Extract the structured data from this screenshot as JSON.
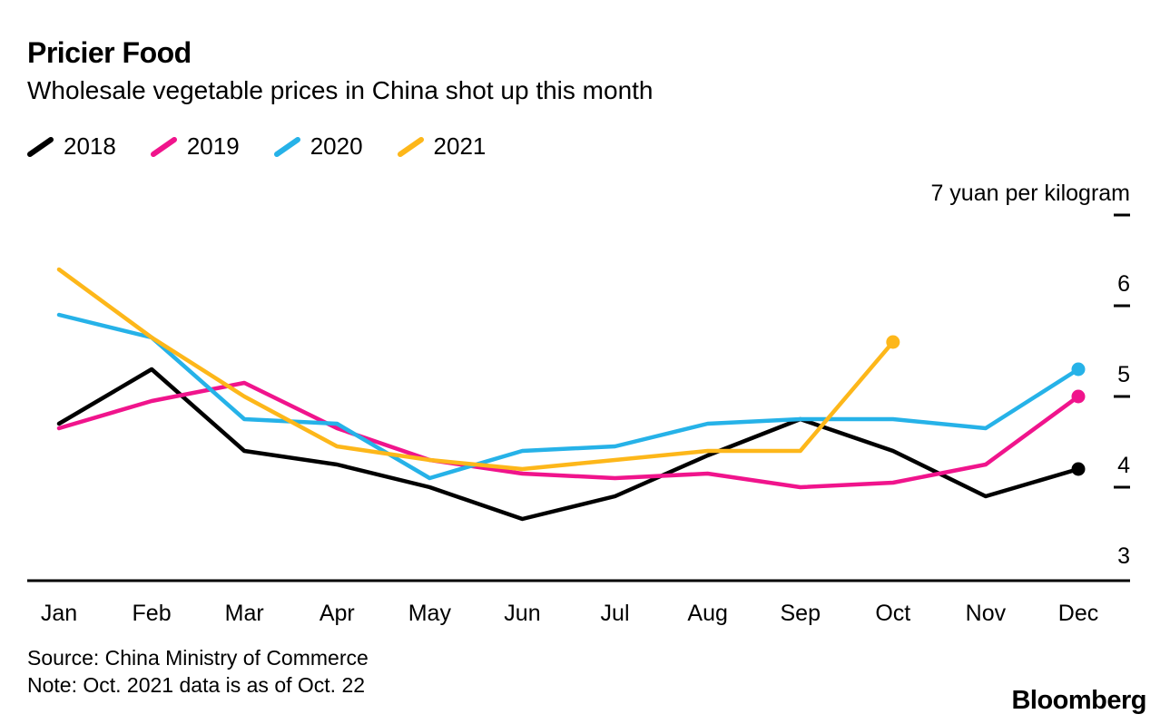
{
  "header": {
    "title": "Pricier Food",
    "subtitle": "Wholesale vegetable prices in China shot up this month"
  },
  "chart_data": {
    "type": "line",
    "categories": [
      "Jan",
      "Feb",
      "Mar",
      "Apr",
      "May",
      "Jun",
      "Jul",
      "Aug",
      "Sep",
      "Oct",
      "Nov",
      "Dec"
    ],
    "series": [
      {
        "name": "2018",
        "color": "#000000",
        "values": [
          4.7,
          5.3,
          4.4,
          4.25,
          4.0,
          3.65,
          3.9,
          4.35,
          4.75,
          4.4,
          3.9,
          4.2
        ]
      },
      {
        "name": "2019",
        "color": "#f0148c",
        "values": [
          4.65,
          4.95,
          5.15,
          4.65,
          4.3,
          4.15,
          4.1,
          4.15,
          4.0,
          4.05,
          4.25,
          5.0
        ]
      },
      {
        "name": "2020",
        "color": "#26b2e8",
        "values": [
          5.9,
          5.65,
          4.75,
          4.7,
          4.1,
          4.4,
          4.45,
          4.7,
          4.75,
          4.75,
          4.65,
          5.3
        ]
      },
      {
        "name": "2021",
        "color": "#fdb71a",
        "values": [
          6.4,
          5.65,
          5.0,
          4.45,
          4.3,
          4.2,
          4.3,
          4.4,
          4.4,
          5.6,
          null,
          null
        ]
      }
    ],
    "title": "Pricier Food",
    "subtitle": "Wholesale vegetable prices in China shot up this month",
    "xlabel": "",
    "ylabel": "yuan per kilogram",
    "ytick_top_label": "7 yuan per kilogram",
    "yticks": [
      3,
      4,
      5,
      6,
      7
    ],
    "ylim": [
      3,
      7
    ],
    "grid": false,
    "legend_position": "top-left",
    "end_markers": true
  },
  "footer": {
    "source": "Source: China Ministry of Commerce",
    "note": "Note: Oct. 2021 data is as of Oct. 22",
    "brand": "Bloomberg"
  }
}
